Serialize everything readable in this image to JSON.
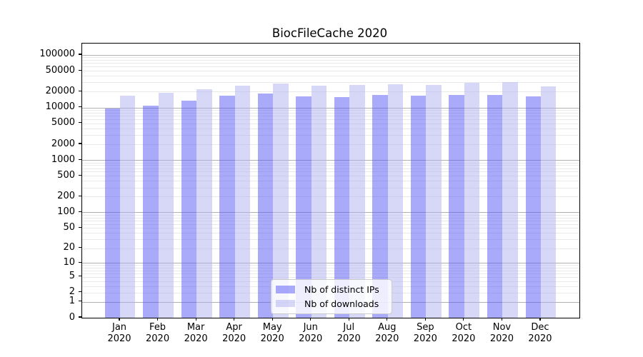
{
  "title": "BiocFileCache 2020",
  "chart_data": {
    "type": "bar",
    "title": "BiocFileCache 2020",
    "categories": [
      "Jan",
      "Feb",
      "Mar",
      "Apr",
      "May",
      "Jun",
      "Jul",
      "Aug",
      "Sep",
      "Oct",
      "Nov",
      "Dec"
    ],
    "x_year_label": "2020",
    "series": [
      {
        "name": "Nb of distinct IPs",
        "color": "rgba(85,85,245,0.5)",
        "values": [
          9700,
          11000,
          13500,
          16600,
          18500,
          16500,
          15900,
          17500,
          17000,
          17500,
          17600,
          16200
        ]
      },
      {
        "name": "Nb of downloads",
        "color": "rgba(175,175,242,0.5)",
        "values": [
          17000,
          18900,
          22000,
          25800,
          28600,
          25800,
          26600,
          27500,
          26600,
          29300,
          30800,
          25300
        ]
      }
    ],
    "y_scale": "log1p",
    "y_ticks": [
      0,
      1,
      2,
      5,
      10,
      20,
      50,
      100,
      200,
      500,
      1000,
      2000,
      5000,
      10000,
      20000,
      50000,
      100000
    ],
    "ylim": [
      0,
      170000
    ],
    "grid": "horizontal, major at powers of 10, minor at 2-9 per decade",
    "legend_position": "lower center",
    "xlabel": "",
    "ylabel": ""
  }
}
